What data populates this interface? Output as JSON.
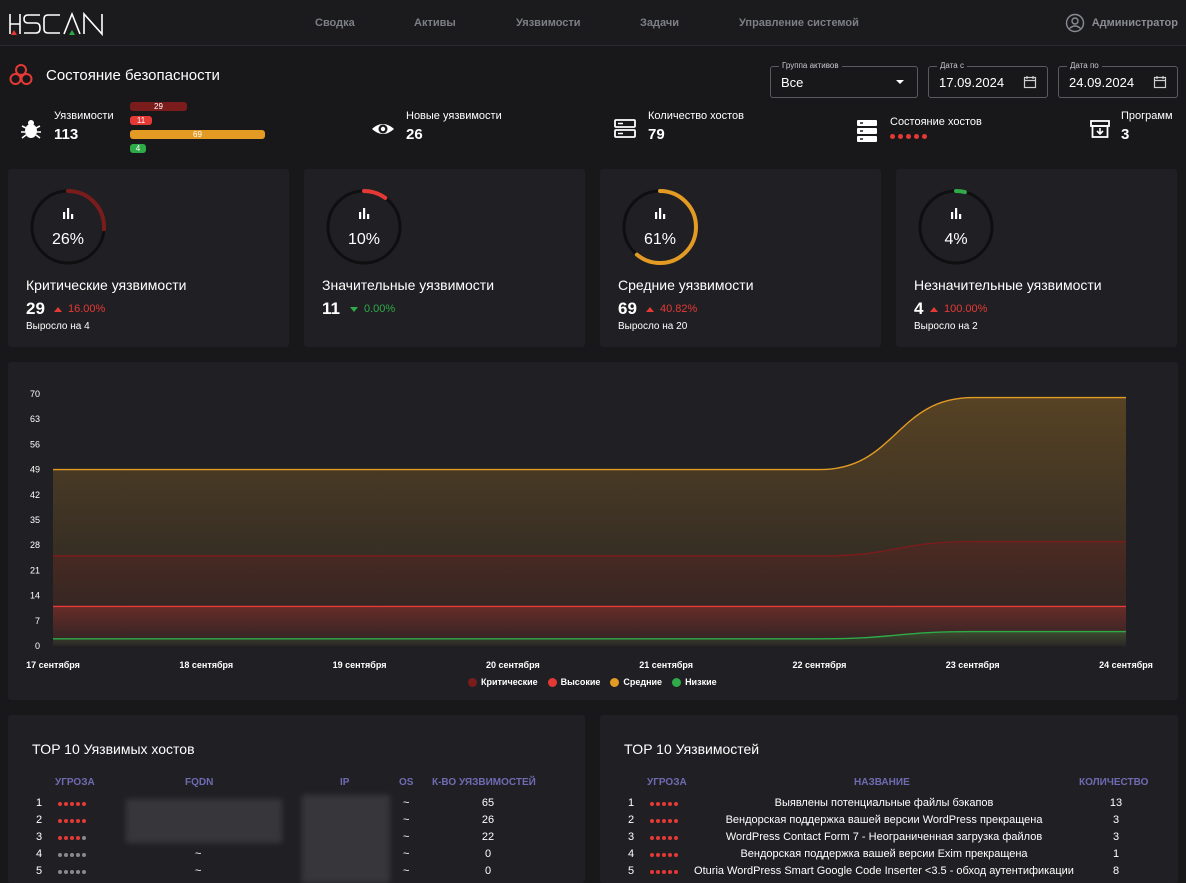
{
  "app": {
    "logo_text": "HSCAN",
    "nav": [
      "Сводка",
      "Активы",
      "Уязвимости",
      "Задачи",
      "Управление системой"
    ],
    "user": "Администратор"
  },
  "header": {
    "title": "Состояние безопасности",
    "asset_group": {
      "label": "Группа активов",
      "value": "Все"
    },
    "date_from": {
      "label": "Дата с",
      "value": "17.09.2024"
    },
    "date_to": {
      "label": "Дата по",
      "value": "24.09.2024"
    }
  },
  "stats": {
    "vulns": {
      "label": "Уязвимости",
      "value": "113",
      "breakdown": [
        "29",
        "11",
        "69",
        "4"
      ]
    },
    "new_vulns": {
      "label": "Новые уязвимости",
      "value": "26"
    },
    "hosts": {
      "label": "Количество хостов",
      "value": "79"
    },
    "host_state": {
      "label": "Состояние хостов"
    },
    "programs": {
      "label": "Программ",
      "value": "3"
    }
  },
  "cards": [
    {
      "pct": "26%",
      "fraction": 0.26,
      "color": "#7b1c1c",
      "name": "Критические уязвимости",
      "count": "29",
      "trend": "16.00%",
      "dir": "up",
      "note": "Выросло на 4"
    },
    {
      "pct": "10%",
      "fraction": 0.1,
      "color": "#e53935",
      "name": "Значительные уязвимости",
      "count": "11",
      "trend": "0.00%",
      "dir": "down",
      "note": ""
    },
    {
      "pct": "61%",
      "fraction": 0.61,
      "color": "#e39b24",
      "name": "Средние уязвимости",
      "count": "69",
      "trend": "40.82%",
      "dir": "up",
      "note": "Выросло на 20"
    },
    {
      "pct": "4%",
      "fraction": 0.04,
      "color": "#2eaa48",
      "name": "Незначительные уязвимости",
      "count": "4",
      "trend": "100.00%",
      "dir": "up",
      "note": "Выросло на 2"
    }
  ],
  "chart_data": {
    "type": "area",
    "x": [
      "17 сентября",
      "18 сентября",
      "19 сентября",
      "20 сентября",
      "21 сентября",
      "22 сентября",
      "23 сентября",
      "24 сентября"
    ],
    "ylim": [
      0,
      70
    ],
    "yticks": [
      0,
      7,
      14,
      21,
      28,
      35,
      42,
      49,
      56,
      63,
      70
    ],
    "series": [
      {
        "name": "Критические",
        "color": "#7b1c1c",
        "values": [
          25,
          25,
          25,
          25,
          25,
          25,
          29,
          29
        ]
      },
      {
        "name": "Высокие",
        "color": "#e53935",
        "values": [
          11,
          11,
          11,
          11,
          11,
          11,
          11,
          11
        ]
      },
      {
        "name": "Средние",
        "color": "#e39b24",
        "values": [
          49,
          49,
          49,
          49,
          49,
          49,
          69,
          69
        ]
      },
      {
        "name": "Низкие",
        "color": "#2eaa48",
        "values": [
          2,
          2,
          2,
          2,
          2,
          2,
          4,
          4
        ]
      }
    ],
    "grid": false,
    "legend": "bottom"
  },
  "top_hosts": {
    "title": "TOP 10 Уязвимых хостов",
    "columns": [
      "УГРОЗА",
      "FQDN",
      "IP",
      "OS",
      "К-ВО УЯЗВИМОСТЕЙ"
    ],
    "rows": [
      {
        "n": "1",
        "level": 5,
        "fqdn": "",
        "os": "~",
        "count": "65"
      },
      {
        "n": "2",
        "level": 5,
        "fqdn": "",
        "os": "~",
        "count": "26"
      },
      {
        "n": "3",
        "level": 4,
        "fqdn": "",
        "os": "~",
        "count": "22"
      },
      {
        "n": "4",
        "level": 0,
        "fqdn": "~",
        "os": "~",
        "count": "0"
      },
      {
        "n": "5",
        "level": 0,
        "fqdn": "~",
        "os": "~",
        "count": "0"
      }
    ]
  },
  "top_vulns": {
    "title": "TOP 10 Уязвимостей",
    "columns": [
      "УГРОЗА",
      "НАЗВАНИЕ",
      "КОЛИЧЕСТВО"
    ],
    "rows": [
      {
        "n": "1",
        "level": 5,
        "name": "Выявлены потенциальные файлы бэкапов",
        "count": "13"
      },
      {
        "n": "2",
        "level": 5,
        "name": "Вендорская поддержка вашей версии WordPress прекращена",
        "count": "3"
      },
      {
        "n": "3",
        "level": 5,
        "name": "WordPress Contact Form 7 - Неограниченная загрузка файлов",
        "count": "3"
      },
      {
        "n": "4",
        "level": 5,
        "name": "Вендорская поддержка вашей версии Exim прекращена",
        "count": "1"
      },
      {
        "n": "5",
        "level": 5,
        "name": "Oturia WordPress Smart Google Code Inserter <3.5 - обход аутентификации",
        "count": "8"
      }
    ]
  }
}
